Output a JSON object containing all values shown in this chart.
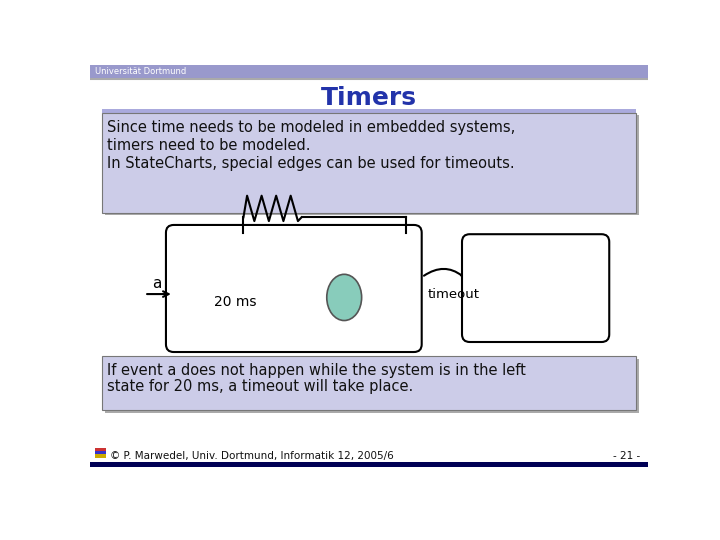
{
  "title": "Timers",
  "header_bg": "#9999cc",
  "header_text": "Universität Dortmund",
  "header_text_color": "#ffffff",
  "slide_bg": "#ffffff",
  "top_box_text_lines": [
    "Since time needs to be modeled in embedded systems,",
    "timers need to be modeled.",
    "In StateCharts, special edges can be used for timeouts."
  ],
  "top_box_bg": "#cccce8",
  "top_box_border": "#888888",
  "bottom_box_text_lines": [
    "If event a does not happen while the system is in the left",
    "state for 20 ms, a timeout will take place."
  ],
  "bottom_box_bg": "#cccce8",
  "bottom_box_border": "#888888",
  "footer_text": "© P. Marwedel, Univ. Dortmund, Informatik 12, 2005/6",
  "footer_right": "- 21 -",
  "footer_bar_color": "#000055",
  "title_color": "#2233aa",
  "timer_box_label": "20 ms",
  "timer_circle_color": "#88ccbb",
  "timeout_label": "timeout",
  "arrow_label": "a",
  "accent_bar_color": "#aaaadd",
  "separator_color": "#aaaaaa",
  "shadow_color": "#aaaaaa"
}
